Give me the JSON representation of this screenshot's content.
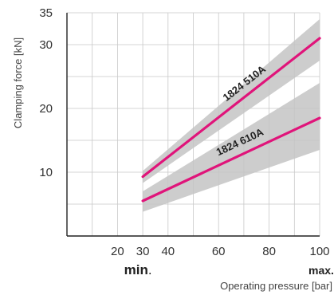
{
  "chart_data": {
    "type": "line",
    "xlabel": "Operating pressure [bar]",
    "ylabel": "Clamping force [kN]",
    "xlim": [
      0,
      100
    ],
    "ylim": [
      0,
      35
    ],
    "x_tick_labels": [
      "20",
      "30",
      "40",
      "60",
      "80",
      "100"
    ],
    "x_tick_values": [
      20,
      30,
      40,
      60,
      80,
      100
    ],
    "x_grid_values": [
      10,
      20,
      30,
      40,
      50,
      60,
      70,
      80,
      90,
      100
    ],
    "y_tick_labels": [
      "10",
      "20",
      "30",
      "35"
    ],
    "y_tick_values": [
      10,
      20,
      30,
      35
    ],
    "y_grid_values": [
      5,
      10,
      15,
      20,
      25,
      30,
      35
    ],
    "grid": true,
    "min_label": "min",
    "min_label_dot": ".",
    "max_label": "max.",
    "min_x": 30,
    "max_x": 100,
    "series": [
      {
        "name": "1824 510A",
        "x": [
          30,
          100
        ],
        "y": [
          9.3,
          31
        ],
        "band_upper": [
          10.2,
          34
        ],
        "band_lower": [
          8.3,
          27.5
        ],
        "color": "#e0147a"
      },
      {
        "name": "1824 610A",
        "x": [
          30,
          100
        ],
        "y": [
          5.5,
          18.5
        ],
        "band_upper": [
          7.0,
          24
        ],
        "band_lower": [
          3.8,
          13.5
        ],
        "color": "#e0147a"
      }
    ],
    "band_color": "#c4c4c4"
  }
}
